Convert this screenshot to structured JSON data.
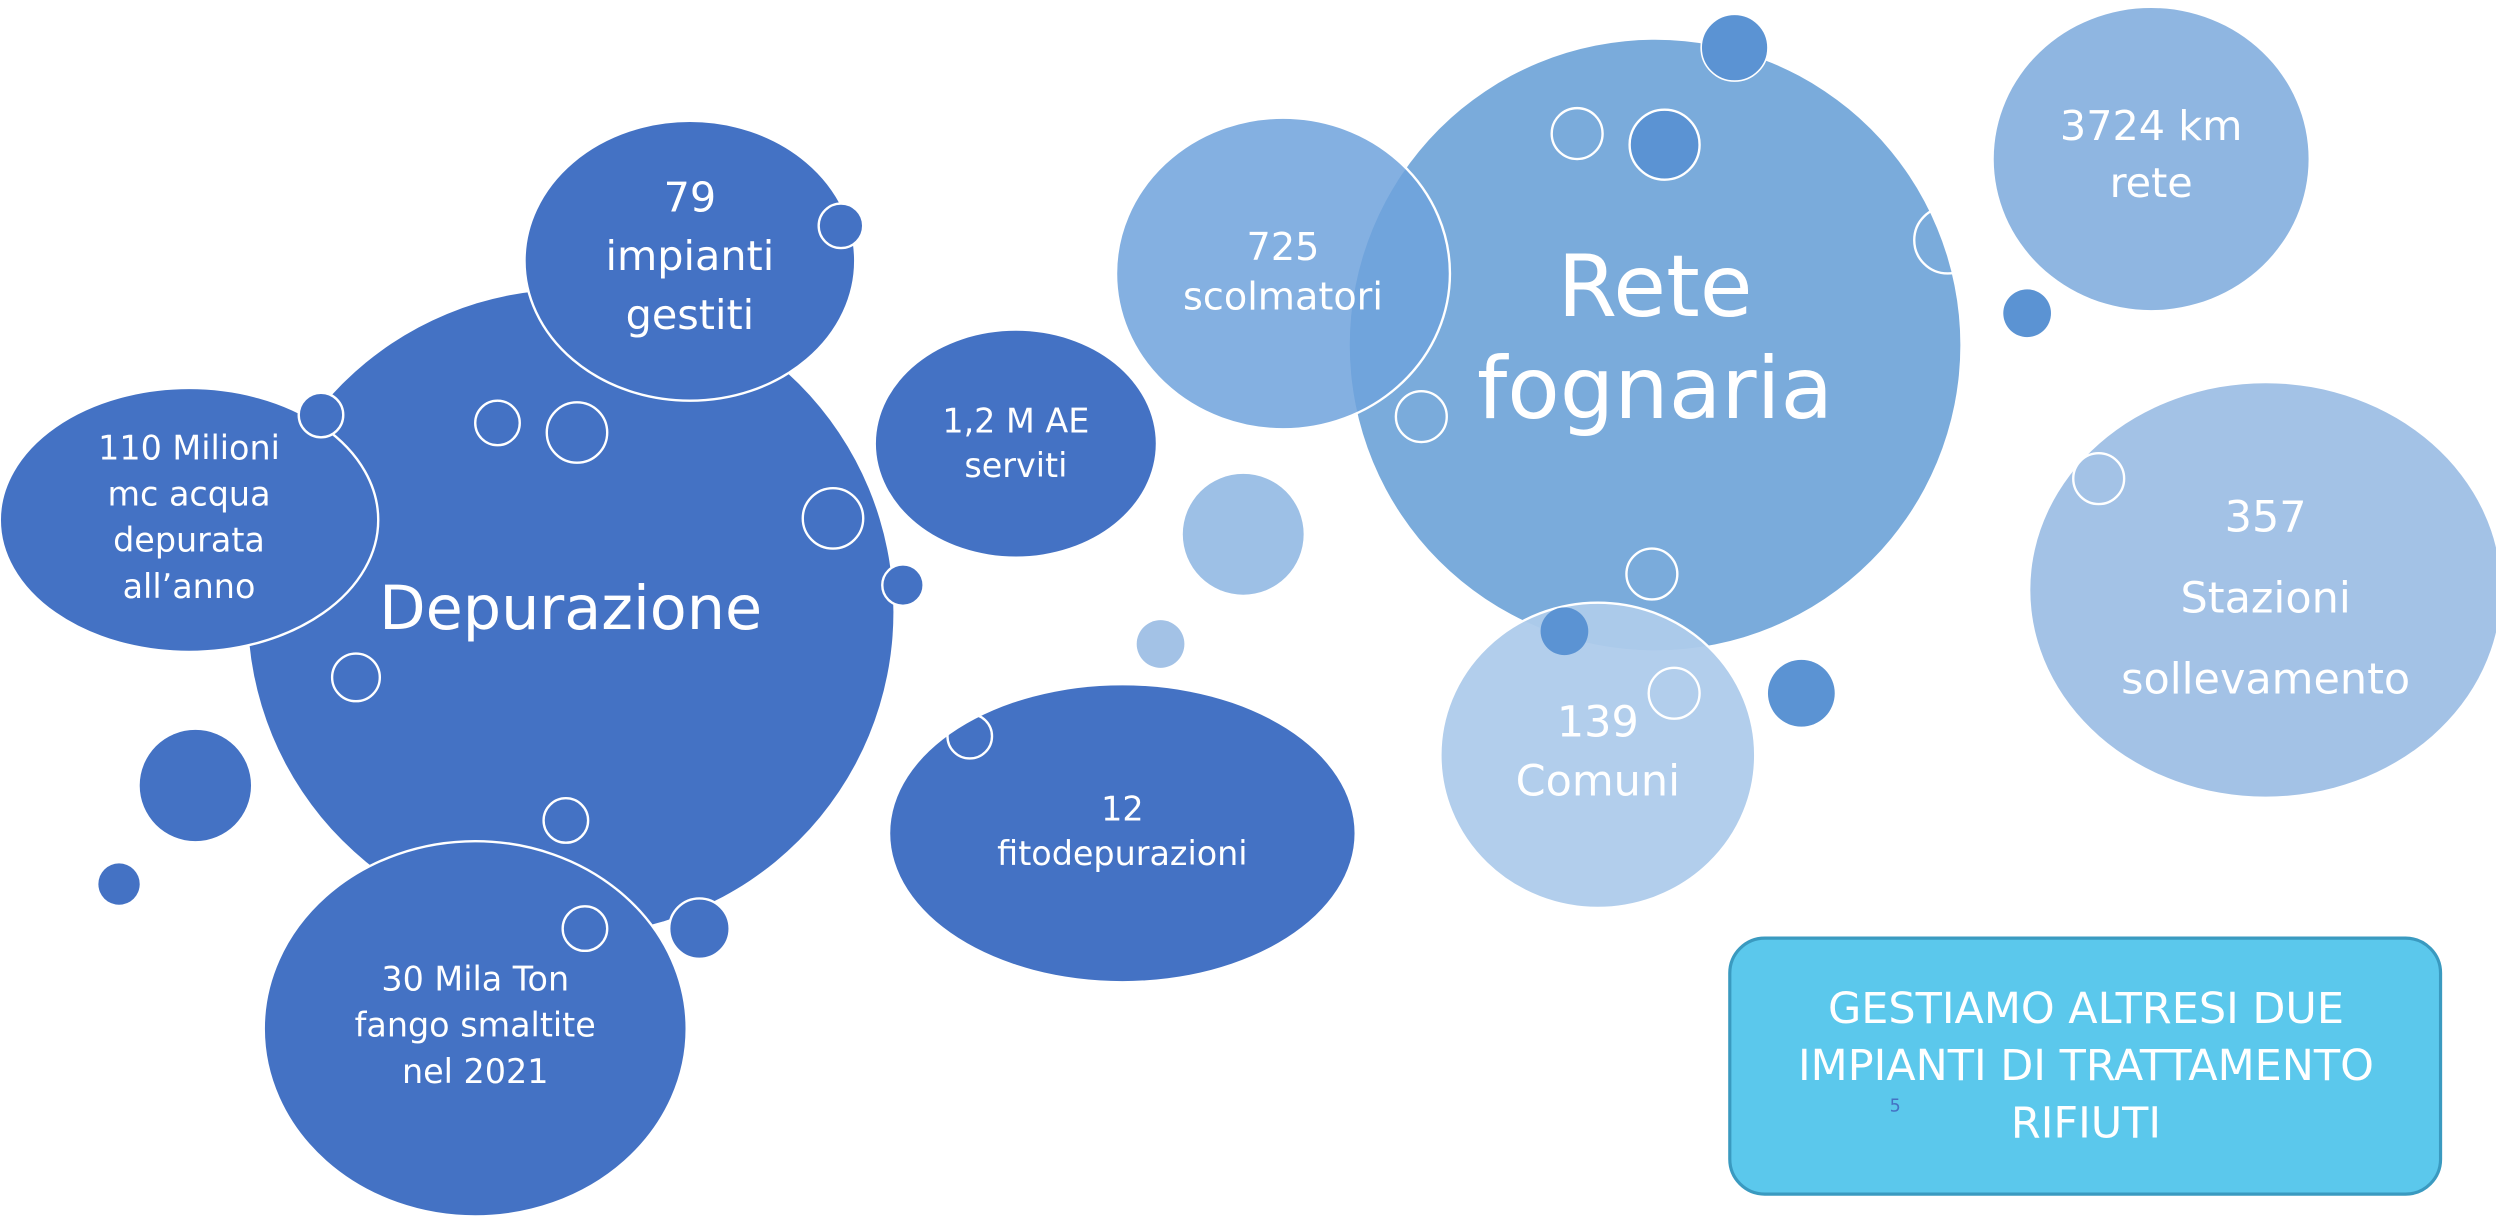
{
  "nodes": [
    {
      "lines": [
        "Depurazione"
      ]
    },
    {
      "lines": [
        "79",
        "impianti",
        "gestiti"
      ]
    },
    {
      "lines": [
        "110 Milioni",
        "mc acqua",
        "depurata",
        "all’anno"
      ]
    },
    {
      "lines": [
        "30 Mila Ton",
        "fango smaltite",
        "nel 2021"
      ]
    },
    {
      "lines": [
        "1,2 M AE",
        "serviti"
      ]
    },
    {
      "lines": [
        "12",
        "fitodepurazioni"
      ]
    },
    {
      "lines": [
        "Rete",
        "fognaria"
      ]
    },
    {
      "lines": [
        "725",
        "scolmatori"
      ]
    },
    {
      "lines": [
        "3724 km",
        "rete"
      ]
    },
    {
      "lines": [
        "357",
        "Stazioni",
        "sollevamento"
      ]
    },
    {
      "lines": [
        "139",
        "Comuni"
      ]
    }
  ],
  "callout": {
    "lines": [
      "GESTIAMO ALTRESI DUE",
      "IMPIANTI DI TRATTAMENTO",
      "RIFIUTI"
    ]
  },
  "page_number": "5"
}
